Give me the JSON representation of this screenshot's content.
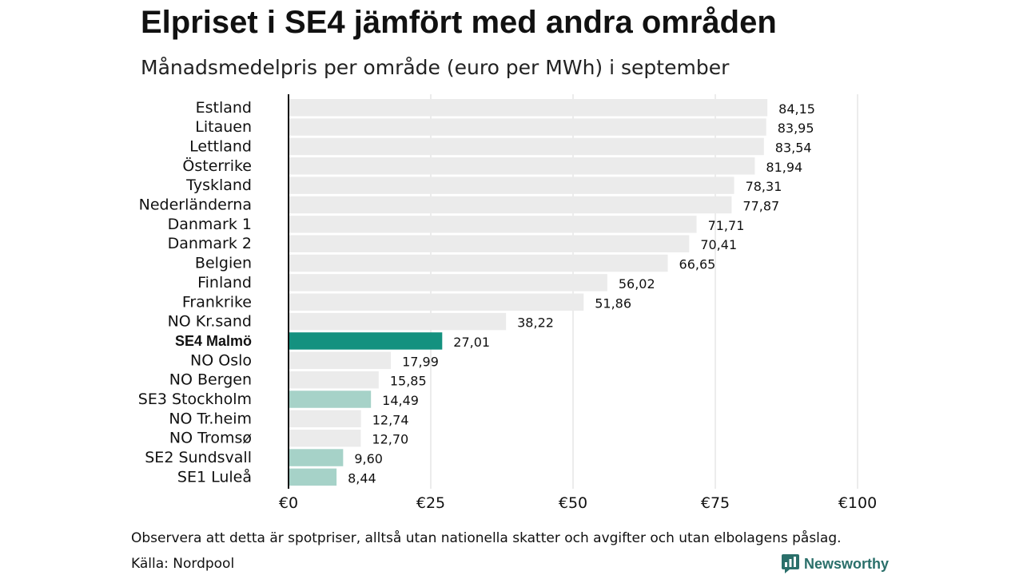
{
  "title": "Elpriset i SE4 jämfört med andra områden",
  "subtitle": "Månadsmedelpris per område (euro per MWh) i september",
  "footnote": "Observera att detta är spotpriser, alltså utan nationella skatter och avgifter och utan elbolagens påslag.",
  "source": "Källa: Nordpool",
  "brand": {
    "name": "Newsworthy",
    "icon": "newsworthy-logo-icon",
    "color": "#2a6f6a"
  },
  "colors": {
    "default": "#ebebeb",
    "highlight": "#14917f",
    "swedish": "#a6d2c8",
    "grid": "#d9d9d9",
    "axis": "#111111"
  },
  "chart_data": {
    "type": "bar",
    "orientation": "horizontal",
    "categories": [
      "Estland",
      "Litauen",
      "Lettland",
      "Österrike",
      "Tyskland",
      "Nederländerna",
      "Danmark 1",
      "Danmark 2",
      "Belgien",
      "Finland",
      "Frankrike",
      "NO Kr.sand",
      "SE4 Malmö",
      "NO Oslo",
      "NO Bergen",
      "SE3 Stockholm",
      "NO Tr.heim",
      "NO Tromsø",
      "SE2 Sundsvall",
      "SE1 Luleå"
    ],
    "values": [
      84.15,
      83.95,
      83.54,
      81.94,
      78.31,
      77.87,
      71.71,
      70.41,
      66.65,
      56.02,
      51.86,
      38.22,
      27.01,
      17.99,
      15.85,
      14.49,
      12.74,
      12.7,
      9.6,
      8.44
    ],
    "value_labels": [
      "84,15",
      "83,95",
      "83,54",
      "81,94",
      "78,31",
      "77,87",
      "71,71",
      "70,41",
      "66,65",
      "56,02",
      "51,86",
      "38,22",
      "27,01",
      "17,99",
      "15,85",
      "14,49",
      "12,74",
      "12,70",
      "9,60",
      "8,44"
    ],
    "bar_colors": [
      "default",
      "default",
      "default",
      "default",
      "default",
      "default",
      "default",
      "default",
      "default",
      "default",
      "default",
      "default",
      "highlight",
      "default",
      "default",
      "swedish",
      "default",
      "default",
      "swedish",
      "swedish"
    ],
    "bold_categories": [
      "SE4 Malmö"
    ],
    "xlim": [
      0,
      100
    ],
    "xticks": [
      0,
      25,
      50,
      75,
      100
    ],
    "xtick_labels": [
      "€0",
      "€25",
      "€50",
      "€75",
      "€100"
    ],
    "xlabel": "",
    "ylabel": "",
    "grid": true
  }
}
